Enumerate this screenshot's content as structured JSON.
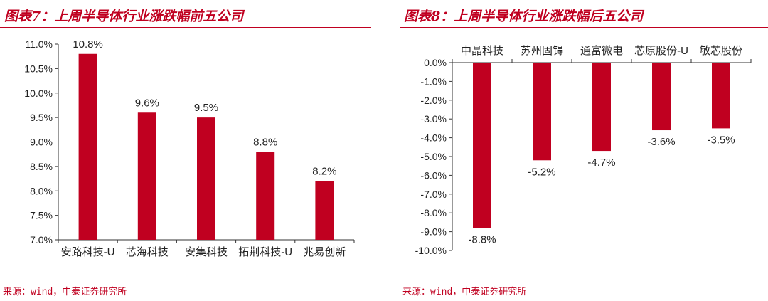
{
  "panels": [
    {
      "title": "图表7：上周半导体行业涨跌幅前五公司",
      "source": "来源：wind，中泰证券研究所"
    },
    {
      "title": "图表8：上周半导体行业涨跌幅后五公司",
      "source": "来源：wind，中泰证券研究所"
    }
  ],
  "chart_data": [
    {
      "type": "bar",
      "categories": [
        "安路科技-U",
        "芯海科技",
        "安集科技",
        "拓荆科技-U",
        "兆易创新"
      ],
      "values": [
        10.8,
        9.6,
        9.5,
        8.8,
        8.2
      ],
      "data_labels": [
        "10.8%",
        "9.6%",
        "9.5%",
        "8.8%",
        "8.2%"
      ],
      "ylim": [
        7.0,
        11.0
      ],
      "yticks": [
        "7.0%",
        "7.5%",
        "8.0%",
        "8.5%",
        "9.0%",
        "9.5%",
        "10.0%",
        "10.5%",
        "11.0%"
      ],
      "category_axis_position": "bottom",
      "grid": false,
      "bar_color": "#c00020"
    },
    {
      "type": "bar",
      "categories": [
        "中晶科技",
        "苏州固锝",
        "通富微电",
        "芯原股份-U",
        "敏芯股份"
      ],
      "values": [
        -8.8,
        -5.2,
        -4.7,
        -3.6,
        -3.5
      ],
      "data_labels": [
        "-8.8%",
        "-5.2%",
        "-4.7%",
        "-3.6%",
        "-3.5%"
      ],
      "ylim": [
        -10.0,
        0.0
      ],
      "yticks": [
        "0.0%",
        "-1.0%",
        "-2.0%",
        "-3.0%",
        "-4.0%",
        "-5.0%",
        "-6.0%",
        "-7.0%",
        "-8.0%",
        "-9.0%",
        "-10.0%"
      ],
      "category_axis_position": "top",
      "grid": false,
      "bar_color": "#c00020"
    }
  ]
}
